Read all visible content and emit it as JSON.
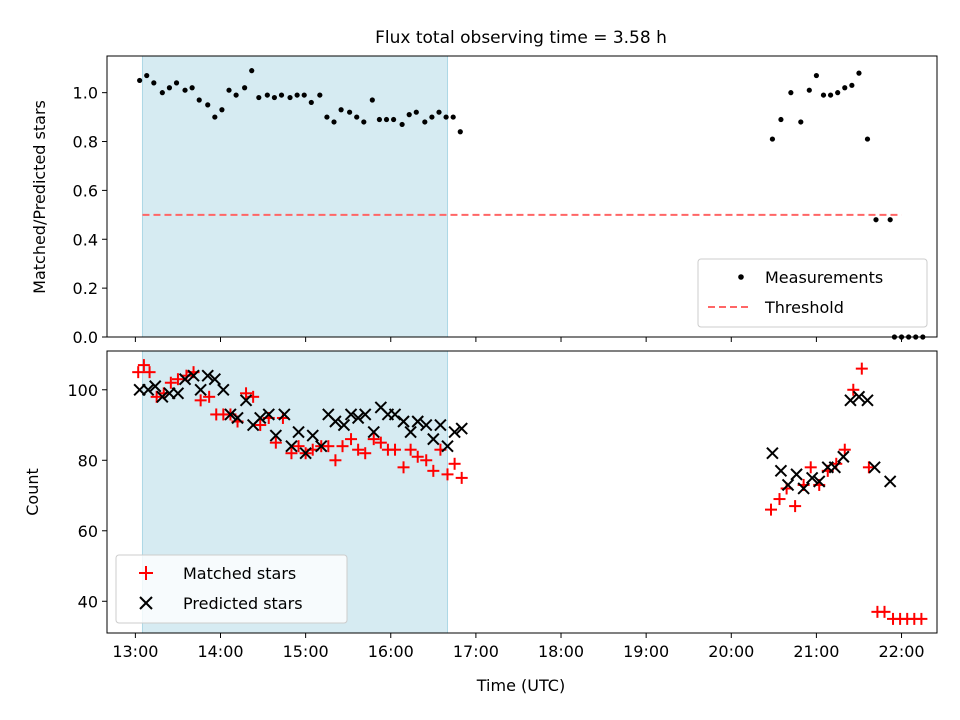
{
  "figure": {
    "title": "Flux total observing time = 3.58 h",
    "xlabel": "Time (UTC)",
    "colors": {
      "shade": "#add8e6",
      "measurement": "#000000",
      "threshold": "#ff6666",
      "matched": "#ff0000",
      "predicted": "#000000"
    }
  },
  "chart_data": [
    {
      "type": "scatter",
      "ylabel": "Matched/Predicted stars",
      "xlim": [
        "12:40",
        "22:25"
      ],
      "ylim": [
        0,
        1.15
      ],
      "xticks": [
        "13:00",
        "14:00",
        "15:00",
        "16:00",
        "17:00",
        "18:00",
        "19:00",
        "20:00",
        "21:00",
        "22:00"
      ],
      "yticks": [
        "0.0",
        "0.2",
        "0.4",
        "0.6",
        "0.8",
        "1.0"
      ],
      "shaded_span": [
        "13:05",
        "16:40"
      ],
      "legend": {
        "location": "lower-right",
        "entries": [
          "Measurements",
          "Threshold"
        ]
      },
      "series": [
        {
          "name": "Measurements",
          "marker": "dot",
          "points": [
            [
              "13:03",
              1.05
            ],
            [
              "13:08",
              1.07
            ],
            [
              "13:13",
              1.04
            ],
            [
              "13:19",
              1.0
            ],
            [
              "13:24",
              1.02
            ],
            [
              "13:29",
              1.04
            ],
            [
              "13:35",
              1.01
            ],
            [
              "13:40",
              1.02
            ],
            [
              "13:45",
              0.97
            ],
            [
              "13:51",
              0.95
            ],
            [
              "13:56",
              0.9
            ],
            [
              "14:01",
              0.93
            ],
            [
              "14:06",
              1.01
            ],
            [
              "14:11",
              0.99
            ],
            [
              "14:17",
              1.02
            ],
            [
              "14:22",
              1.09
            ],
            [
              "14:27",
              0.98
            ],
            [
              "14:33",
              0.99
            ],
            [
              "14:38",
              0.98
            ],
            [
              "14:43",
              0.99
            ],
            [
              "14:49",
              0.98
            ],
            [
              "14:54",
              0.99
            ],
            [
              "14:59",
              0.99
            ],
            [
              "15:04",
              0.96
            ],
            [
              "15:10",
              0.99
            ],
            [
              "15:15",
              0.9
            ],
            [
              "15:20",
              0.88
            ],
            [
              "15:25",
              0.93
            ],
            [
              "15:31",
              0.92
            ],
            [
              "15:36",
              0.9
            ],
            [
              "15:41",
              0.88
            ],
            [
              "15:47",
              0.97
            ],
            [
              "15:52",
              0.89
            ],
            [
              "15:57",
              0.89
            ],
            [
              "16:02",
              0.89
            ],
            [
              "16:08",
              0.87
            ],
            [
              "16:13",
              0.91
            ],
            [
              "16:18",
              0.92
            ],
            [
              "16:24",
              0.88
            ],
            [
              "16:29",
              0.9
            ],
            [
              "16:34",
              0.92
            ],
            [
              "16:39",
              0.9
            ],
            [
              "16:44",
              0.9
            ],
            [
              "16:49",
              0.84
            ],
            [
              "20:29",
              0.81
            ],
            [
              "20:35",
              0.89
            ],
            [
              "20:42",
              1.0
            ],
            [
              "20:49",
              0.88
            ],
            [
              "20:55",
              1.01
            ],
            [
              "21:00",
              1.07
            ],
            [
              "21:05",
              0.99
            ],
            [
              "21:10",
              0.99
            ],
            [
              "21:15",
              1.0
            ],
            [
              "21:20",
              1.02
            ],
            [
              "21:25",
              1.03
            ],
            [
              "21:30",
              1.08
            ],
            [
              "21:36",
              0.81
            ],
            [
              "21:42",
              0.48
            ],
            [
              "21:52",
              0.48
            ],
            [
              "21:55",
              0.0
            ],
            [
              "22:00",
              0.0
            ],
            [
              "22:05",
              0.0
            ],
            [
              "22:10",
              0.0
            ],
            [
              "22:15",
              0.0
            ]
          ]
        },
        {
          "name": "Threshold",
          "style": "dashed-line",
          "points": [
            [
              "13:05",
              0.5
            ],
            [
              "22:00",
              0.5
            ]
          ]
        }
      ]
    },
    {
      "type": "scatter",
      "ylabel": "Count",
      "xlim": [
        "12:40",
        "22:25"
      ],
      "ylim": [
        31,
        111
      ],
      "xticks": [
        "13:00",
        "14:00",
        "15:00",
        "16:00",
        "17:00",
        "18:00",
        "19:00",
        "20:00",
        "21:00",
        "22:00"
      ],
      "xtick_labels": [
        "13:00",
        "14:00",
        "15:00",
        "16:00",
        "17:00",
        "18:00",
        "19:00",
        "20:00",
        "21:00",
        "22:00"
      ],
      "yticks": [
        "40",
        "60",
        "80",
        "100"
      ],
      "shaded_span": [
        "13:05",
        "16:40"
      ],
      "legend": {
        "location": "lower-left",
        "entries": [
          "Matched stars",
          "Predicted stars"
        ]
      },
      "series": [
        {
          "name": "Matched stars",
          "marker": "plus",
          "points": [
            [
              "13:02",
              105
            ],
            [
              "13:06",
              107
            ],
            [
              "13:10",
              105
            ],
            [
              "13:15",
              98
            ],
            [
              "13:20",
              99
            ],
            [
              "13:25",
              102
            ],
            [
              "13:30",
              103
            ],
            [
              "13:36",
              104
            ],
            [
              "13:41",
              105
            ],
            [
              "13:46",
              97
            ],
            [
              "13:52",
              98
            ],
            [
              "13:57",
              93
            ],
            [
              "14:02",
              93
            ],
            [
              "14:07",
              93
            ],
            [
              "14:12",
              91
            ],
            [
              "14:18",
              99
            ],
            [
              "14:23",
              98
            ],
            [
              "14:28",
              90
            ],
            [
              "14:34",
              92
            ],
            [
              "14:39",
              85
            ],
            [
              "14:44",
              92
            ],
            [
              "14:50",
              82
            ],
            [
              "14:55",
              84
            ],
            [
              "15:00",
              82
            ],
            [
              "15:05",
              83
            ],
            [
              "15:11",
              84
            ],
            [
              "15:16",
              84
            ],
            [
              "15:21",
              80
            ],
            [
              "15:26",
              84
            ],
            [
              "15:32",
              86
            ],
            [
              "15:37",
              83
            ],
            [
              "15:42",
              82
            ],
            [
              "15:48",
              86
            ],
            [
              "15:53",
              85
            ],
            [
              "15:58",
              83
            ],
            [
              "16:03",
              83
            ],
            [
              "16:09",
              78
            ],
            [
              "16:14",
              83
            ],
            [
              "16:19",
              81
            ],
            [
              "16:25",
              80
            ],
            [
              "16:30",
              77
            ],
            [
              "16:35",
              83
            ],
            [
              "16:40",
              76
            ],
            [
              "16:45",
              79
            ],
            [
              "16:50",
              75
            ],
            [
              "20:28",
              66
            ],
            [
              "20:34",
              69
            ],
            [
              "20:39",
              72
            ],
            [
              "20:45",
              67
            ],
            [
              "20:51",
              73
            ],
            [
              "20:56",
              78
            ],
            [
              "21:02",
              73
            ],
            [
              "21:08",
              77
            ],
            [
              "21:14",
              79
            ],
            [
              "21:20",
              83
            ],
            [
              "21:26",
              100
            ],
            [
              "21:32",
              106
            ],
            [
              "21:37",
              78
            ],
            [
              "21:43",
              37
            ],
            [
              "21:48",
              37
            ],
            [
              "21:54",
              35
            ],
            [
              "21:59",
              35
            ],
            [
              "22:04",
              35
            ],
            [
              "22:09",
              35
            ],
            [
              "22:14",
              35
            ]
          ]
        },
        {
          "name": "Predicted stars",
          "marker": "x",
          "points": [
            [
              "13:03",
              100
            ],
            [
              "13:09",
              100
            ],
            [
              "13:14",
              101
            ],
            [
              "13:19",
              98
            ],
            [
              "13:24",
              99
            ],
            [
              "13:30",
              99
            ],
            [
              "13:35",
              103
            ],
            [
              "13:41",
              104
            ],
            [
              "13:46",
              100
            ],
            [
              "13:51",
              104
            ],
            [
              "13:56",
              103
            ],
            [
              "14:02",
              100
            ],
            [
              "14:07",
              93
            ],
            [
              "14:12",
              92
            ],
            [
              "14:18",
              97
            ],
            [
              "14:23",
              90
            ],
            [
              "14:28",
              92
            ],
            [
              "14:34",
              93
            ],
            [
              "14:39",
              87
            ],
            [
              "14:45",
              93
            ],
            [
              "14:50",
              84
            ],
            [
              "14:55",
              88
            ],
            [
              "15:00",
              82
            ],
            [
              "15:05",
              87
            ],
            [
              "15:11",
              84
            ],
            [
              "15:16",
              93
            ],
            [
              "15:21",
              91
            ],
            [
              "15:27",
              90
            ],
            [
              "15:32",
              93
            ],
            [
              "15:37",
              92
            ],
            [
              "15:42",
              93
            ],
            [
              "15:48",
              88
            ],
            [
              "15:53",
              95
            ],
            [
              "15:58",
              93
            ],
            [
              "16:03",
              93
            ],
            [
              "16:09",
              91
            ],
            [
              "16:14",
              88
            ],
            [
              "16:19",
              91
            ],
            [
              "16:25",
              90
            ],
            [
              "16:30",
              86
            ],
            [
              "16:35",
              90
            ],
            [
              "16:40",
              84
            ],
            [
              "16:45",
              88
            ],
            [
              "16:50",
              89
            ],
            [
              "20:29",
              82
            ],
            [
              "20:35",
              77
            ],
            [
              "20:40",
              73
            ],
            [
              "20:46",
              76
            ],
            [
              "20:51",
              72
            ],
            [
              "20:57",
              75
            ],
            [
              "21:02",
              74
            ],
            [
              "21:08",
              78
            ],
            [
              "21:13",
              78
            ],
            [
              "21:19",
              81
            ],
            [
              "21:24",
              97
            ],
            [
              "21:30",
              98
            ],
            [
              "21:36",
              97
            ],
            [
              "21:41",
              78
            ],
            [
              "21:52",
              74
            ]
          ]
        }
      ]
    }
  ]
}
